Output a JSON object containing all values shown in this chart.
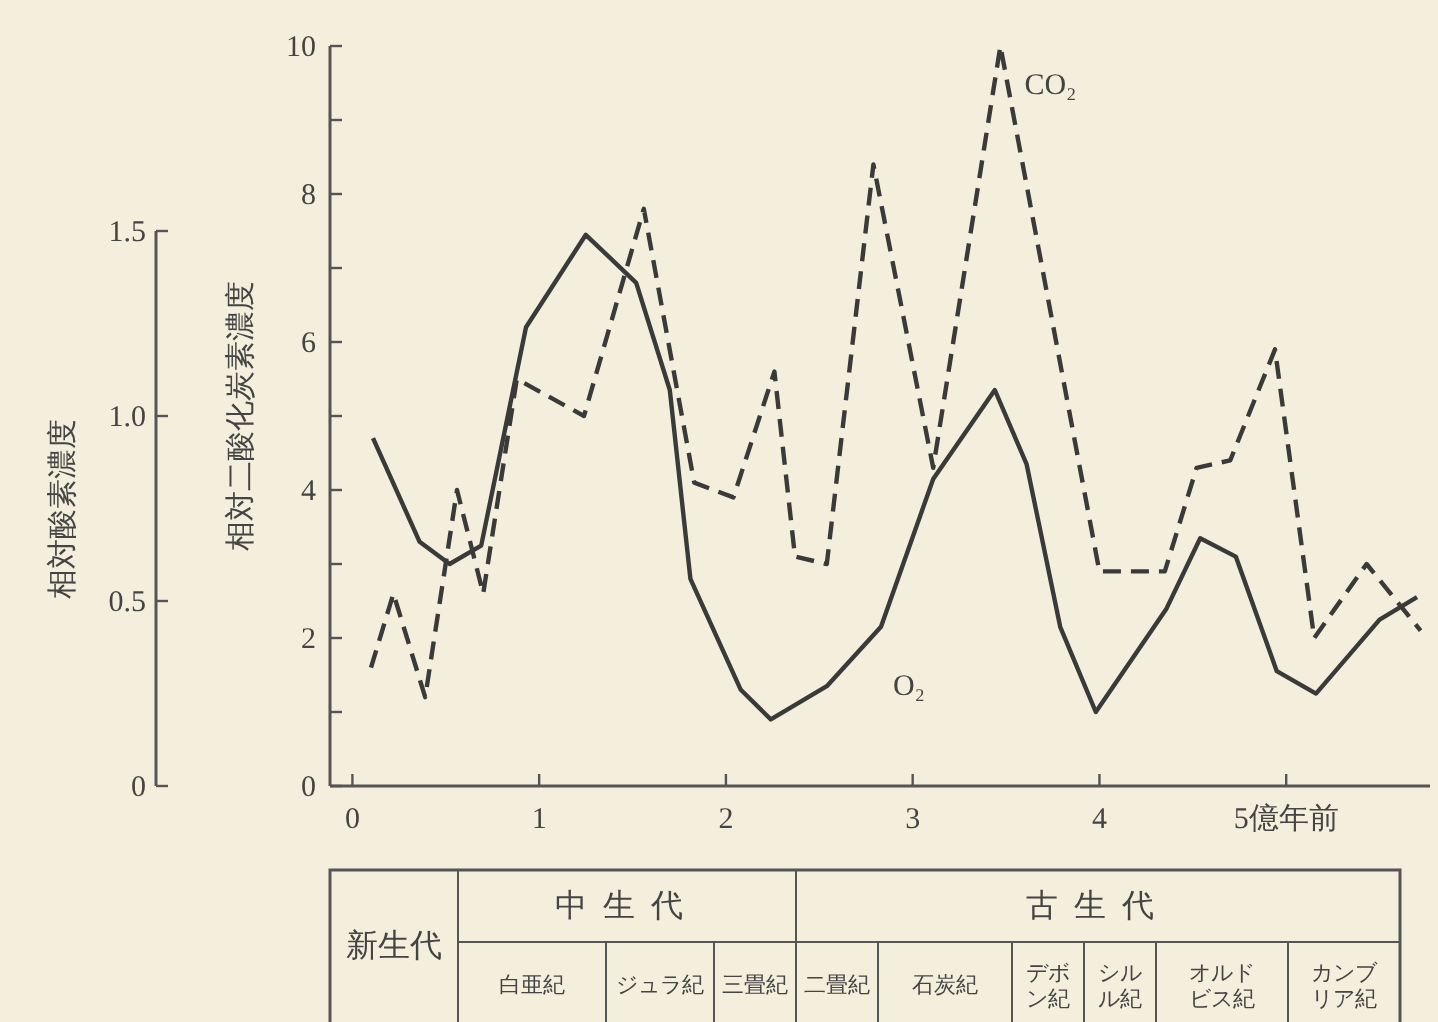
{
  "chart_data": {
    "type": "line",
    "ylabel": "相対二酸化炭素濃度",
    "y2label": "相対酸素濃度",
    "xlim": [
      -0.12,
      5.77
    ],
    "xticks": [
      0,
      1,
      2,
      3,
      4,
      {
        "value": 5,
        "label": "5億年前"
      }
    ],
    "ylim": [
      0,
      10
    ],
    "yticks": [
      0,
      {
        "value": 1,
        "label": null
      },
      2,
      {
        "value": 3,
        "label": null
      },
      4,
      {
        "value": 5,
        "label": null
      },
      6,
      {
        "value": 7,
        "label": null
      },
      8,
      {
        "value": 9,
        "label": null
      },
      10
    ],
    "y2lim": [
      0,
      2
    ],
    "y2ticks": [
      0,
      0.5,
      {
        "value": 1,
        "label": "1.0"
      },
      1.5
    ],
    "series": [
      {
        "name": "CO₂",
        "color": "#3a3a3a",
        "line_style": "dashed",
        "x": [
          0.1,
          0.22,
          0.39,
          0.56,
          0.7,
          0.88,
          1.24,
          1.56,
          1.83,
          2.04,
          2.26,
          2.37,
          2.54,
          2.79,
          3.11,
          3.47,
          4.0,
          4.35,
          4.52,
          4.7,
          4.94,
          5.15,
          5.43,
          5.72
        ],
        "values": [
          1.6,
          2.6,
          1.2,
          4.0,
          2.6,
          5.5,
          5.0,
          7.8,
          4.1,
          3.9,
          5.6,
          3.1,
          3.0,
          8.4,
          4.3,
          10,
          2.9,
          2.9,
          4.3,
          4.4,
          5.9,
          2.0,
          3.0,
          2.1
        ]
      },
      {
        "name": "O₂",
        "color": "#3a3a3a",
        "line_style": "solid",
        "axis": "y2",
        "x": [
          0.11,
          0.36,
          0.52,
          0.69,
          0.93,
          1.25,
          1.52,
          1.7,
          1.81,
          2.08,
          2.24,
          2.54,
          2.83,
          3.11,
          3.44,
          3.61,
          3.79,
          3.98,
          4.36,
          4.54,
          4.73,
          4.95,
          5.16,
          5.5,
          5.7
        ],
        "values": [
          0.94,
          0.66,
          0.6,
          0.65,
          1.24,
          1.49,
          1.36,
          1.07,
          0.56,
          0.26,
          0.18,
          0.27,
          0.43,
          0.83,
          1.07,
          0.87,
          0.43,
          0.2,
          0.48,
          0.67,
          0.62,
          0.31,
          0.25,
          0.45,
          0.51
        ]
      }
    ],
    "annotations": [
      "新生代",
      "中生代",
      "古生代",
      "白亜紀",
      "ジュラ紀",
      "三畳紀",
      "二畳紀",
      "石炭紀",
      "デボン紀",
      "シルル紀",
      "オルドビス紀",
      "カンブリア紀"
    ],
    "grid": false
  }
}
